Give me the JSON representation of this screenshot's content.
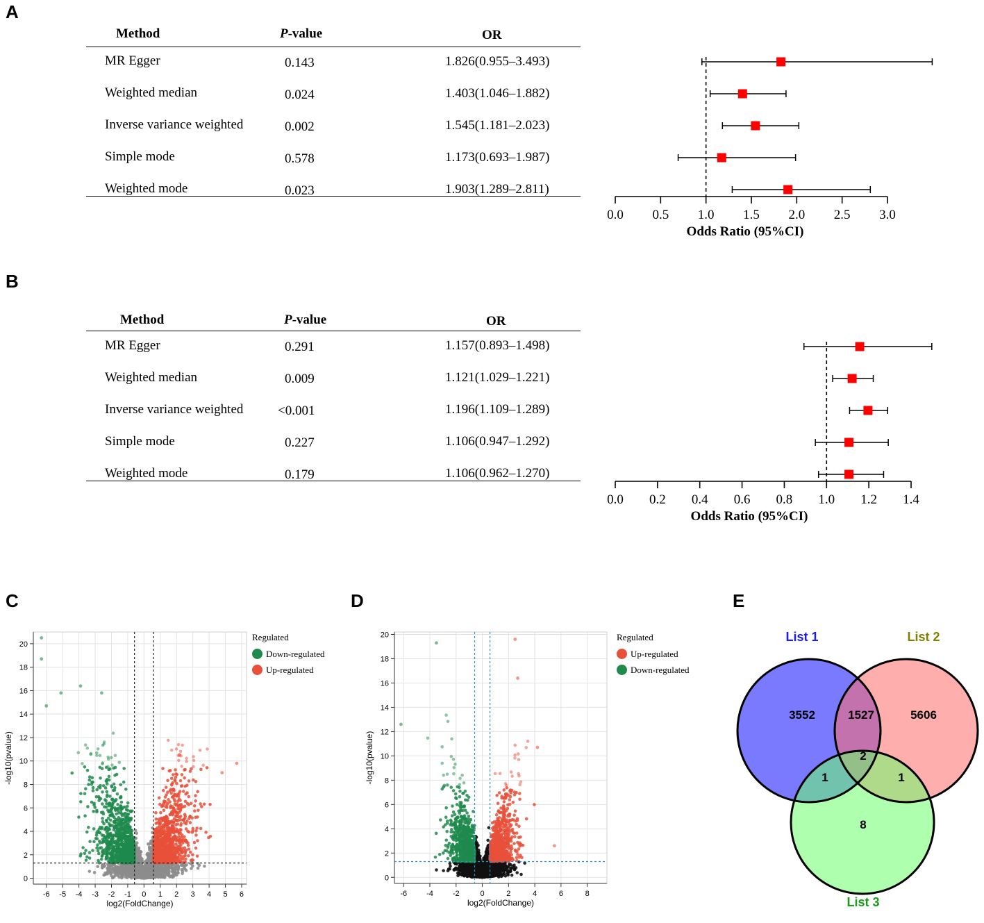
{
  "panel_a": {
    "label": "A",
    "headers": {
      "method": "Method",
      "p_italic": "P",
      "p_rest": "-value",
      "or": "OR"
    },
    "rows": [
      {
        "method": "MR Egger",
        "p": "0.143",
        "or": "1.826(0.955–3.493)"
      },
      {
        "method": "Weighted median",
        "p": "0.024",
        "or": "1.403(1.046–1.882)"
      },
      {
        "method": "Inverse variance weighted",
        "p": "0.002",
        "or": "1.545(1.181–2.023)"
      },
      {
        "method": "Simple mode",
        "p": "0.578",
        "or": "1.173(0.693–1.987)"
      },
      {
        "method": "Weighted mode",
        "p": "0.023",
        "or": "1.903(1.289–2.811)"
      }
    ]
  },
  "panel_b": {
    "label": "B",
    "headers": {
      "method": "Method",
      "p_italic": "P",
      "p_rest": "-value",
      "or": "OR"
    },
    "rows": [
      {
        "method": "MR Egger",
        "p": "0.291",
        "or": "1.157(0.893–1.498)"
      },
      {
        "method": "Weighted median",
        "p": "0.009",
        "or": "1.121(1.029–1.221)"
      },
      {
        "method": "Inverse variance weighted",
        "p": "<0.001",
        "or": "1.196(1.109–1.289)"
      },
      {
        "method": "Simple mode",
        "p": "0.227",
        "or": "1.106(0.947–1.292)"
      },
      {
        "method": "Weighted mode",
        "p": "0.179",
        "or": "1.106(0.962–1.270)"
      }
    ]
  },
  "panel_c": {
    "label": "C"
  },
  "panel_d": {
    "label": "D"
  },
  "panel_e": {
    "label": "E"
  },
  "chart_data": [
    {
      "id": "forest_a",
      "type": "scatter",
      "title": "",
      "xlabel": "Odds Ratio (95%CI)",
      "ylabel": "",
      "xlim": [
        0.0,
        3.0
      ],
      "reference_line": 1.0,
      "ticks": [
        "0.0",
        "0.5",
        "1.0",
        "1.5",
        "2.0",
        "2.5",
        "3.0"
      ],
      "tick_values": [
        0.0,
        0.5,
        1.0,
        1.5,
        2.0,
        2.5,
        3.0
      ],
      "points": [
        {
          "label": "MR Egger",
          "or": 1.826,
          "lo": 0.955,
          "hi": 3.493
        },
        {
          "label": "Weighted median",
          "or": 1.403,
          "lo": 1.046,
          "hi": 1.882
        },
        {
          "label": "Inverse variance weighted",
          "or": 1.545,
          "lo": 1.181,
          "hi": 2.023
        },
        {
          "label": "Simple mode",
          "or": 1.173,
          "lo": 0.693,
          "hi": 1.987
        },
        {
          "label": "Weighted mode",
          "or": 1.903,
          "lo": 1.289,
          "hi": 2.811
        }
      ],
      "marker_color": "#ff0000"
    },
    {
      "id": "forest_b",
      "type": "scatter",
      "title": "",
      "xlabel": "Odds Ratio (95%CI)",
      "ylabel": "",
      "xlim": [
        0.0,
        1.4
      ],
      "reference_line": 1.0,
      "ticks": [
        "0.0",
        "0.2",
        "0.4",
        "0.6",
        "0.8",
        "1.0",
        "1.2",
        "1.4"
      ],
      "tick_values": [
        0.0,
        0.2,
        0.4,
        0.6,
        0.8,
        1.0,
        1.2,
        1.4
      ],
      "points": [
        {
          "label": "MR Egger",
          "or": 1.157,
          "lo": 0.893,
          "hi": 1.498
        },
        {
          "label": "Weighted median",
          "or": 1.121,
          "lo": 1.029,
          "hi": 1.221
        },
        {
          "label": "Inverse variance weighted",
          "or": 1.196,
          "lo": 1.109,
          "hi": 1.289
        },
        {
          "label": "Simple mode",
          "or": 1.106,
          "lo": 0.947,
          "hi": 1.292
        },
        {
          "label": "Weighted mode",
          "or": 1.106,
          "lo": 0.962,
          "hi": 1.27
        }
      ],
      "marker_color": "#ff0000"
    },
    {
      "id": "volcano_c",
      "type": "scatter",
      "xlabel": "log2(FoldChange)",
      "ylabel": "-log10(pvalue)",
      "xlim": [
        -6.8,
        6.3
      ],
      "ylim": [
        -0.5,
        21.0
      ],
      "x_ticks": [
        "-6",
        "-5",
        "-4",
        "-3",
        "-2",
        "-1",
        "0",
        "1",
        "2",
        "3",
        "4",
        "5",
        "6"
      ],
      "x_tick_values": [
        -6,
        -5,
        -4,
        -3,
        -2,
        -1,
        0,
        1,
        2,
        3,
        4,
        5,
        6
      ],
      "y_ticks": [
        "0",
        "2",
        "4",
        "6",
        "8",
        "10",
        "12",
        "14",
        "16",
        "18",
        "20"
      ],
      "y_tick_values": [
        0,
        2,
        4,
        6,
        8,
        10,
        12,
        14,
        16,
        18,
        20
      ],
      "fc_threshold": 0.585,
      "p_threshold": 1.301,
      "legend_title": "Regulated",
      "series": [
        {
          "name": "Down-regulated",
          "color": "#1f8a4c"
        },
        {
          "name": "Up-regulated",
          "color": "#e8503a"
        }
      ],
      "ns_color": "#8c8c8c",
      "notable_points": [
        [
          -6.3,
          20.5
        ],
        [
          -6.3,
          18.7
        ],
        [
          -6.0,
          14.7
        ],
        [
          -5.1,
          15.8
        ],
        [
          -3.9,
          16.4
        ],
        [
          -2.6,
          15.8
        ],
        [
          5.7,
          9.8
        ],
        [
          4.8,
          9.0
        ]
      ]
    },
    {
      "id": "volcano_d",
      "type": "scatter",
      "xlabel": "log2(FoldChange)",
      "ylabel": "-log10(pvalue)",
      "xlim": [
        -6.7,
        9.5
      ],
      "ylim": [
        -0.5,
        20.2
      ],
      "x_ticks": [
        "-6",
        "-4",
        "-2",
        "0",
        "2",
        "4",
        "6",
        "8"
      ],
      "x_tick_values": [
        -6,
        -4,
        -2,
        0,
        2,
        4,
        6,
        8
      ],
      "y_ticks": [
        "0",
        "2",
        "4",
        "6",
        "8",
        "10",
        "12",
        "14",
        "16",
        "18",
        "20"
      ],
      "y_tick_values": [
        0,
        2,
        4,
        6,
        8,
        10,
        12,
        14,
        16,
        18,
        20
      ],
      "fc_threshold": 0.585,
      "p_threshold": 1.301,
      "legend_title": "Regulated",
      "series": [
        {
          "name": "Up-regulated",
          "color": "#e8503a"
        },
        {
          "name": "Down-regulated",
          "color": "#1f8a4c"
        }
      ],
      "ns_color": "#111111",
      "notable_points": [
        [
          -6.2,
          12.6
        ],
        [
          -3.5,
          19.3
        ],
        [
          2.5,
          19.6
        ],
        [
          2.7,
          16.4
        ],
        [
          4.2,
          10.7
        ],
        [
          5.5,
          2.6
        ]
      ]
    },
    {
      "id": "venn_e",
      "type": "venn",
      "sets": [
        {
          "name": "List 1",
          "color": "#6b6bff",
          "label_color": "#1a1aff"
        },
        {
          "name": "List 2",
          "color": "#ff6b6b",
          "label_color": "#808000"
        },
        {
          "name": "List 3",
          "color": "#6bff6b",
          "label_color": "#1a9a1a"
        }
      ],
      "regions": {
        "only_1": 3552,
        "only_2": 5606,
        "only_3": 8,
        "1_2": 1527,
        "1_3": 1,
        "2_3": 1,
        "1_2_3": 2
      }
    }
  ]
}
